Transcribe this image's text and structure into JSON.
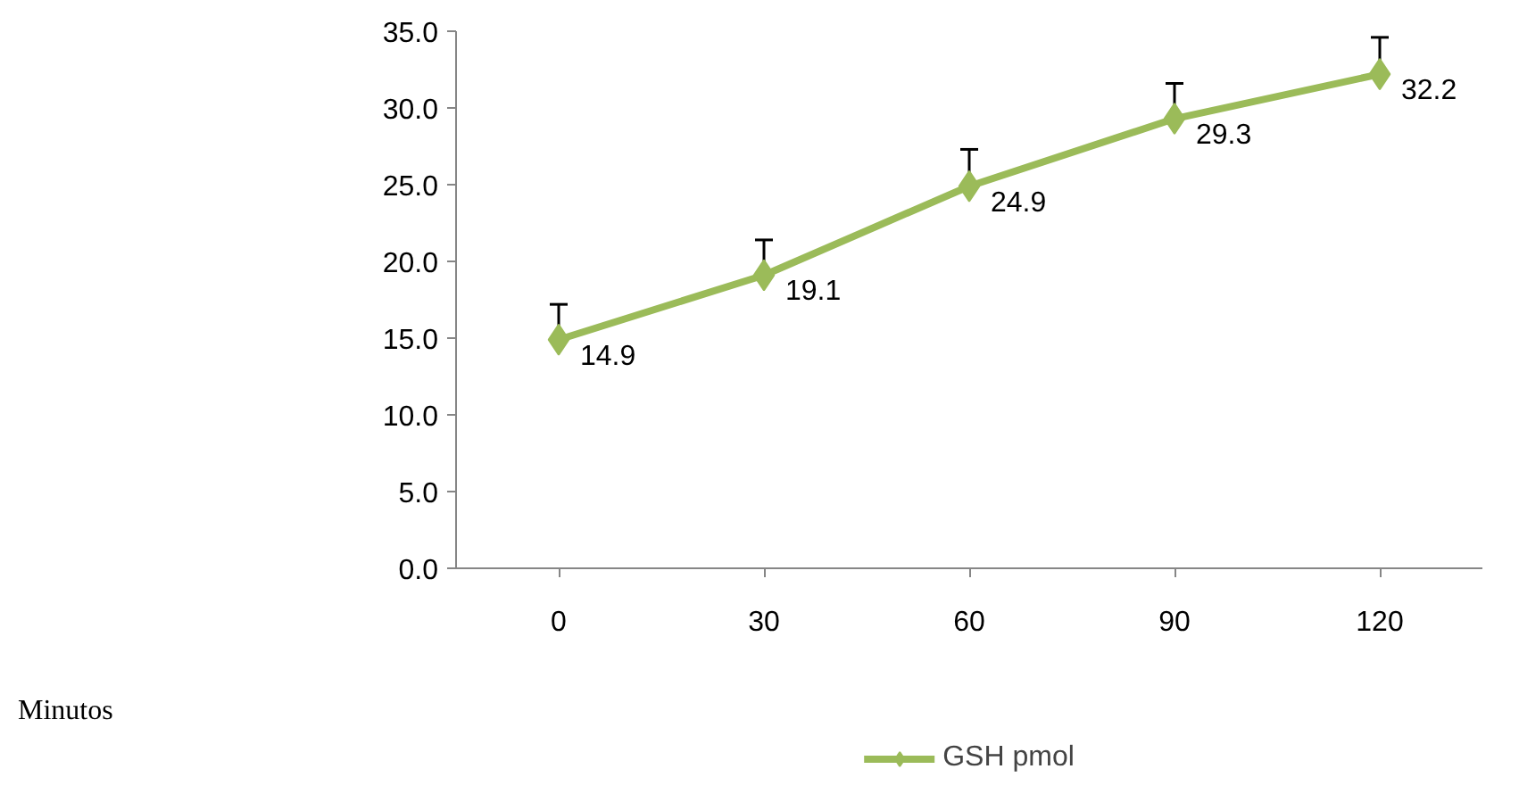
{
  "chart_data": {
    "type": "line",
    "annotations": [
      "Minutos"
    ],
    "categories": [
      "0",
      "30",
      "60",
      "90",
      "120"
    ],
    "series": [
      {
        "name": "GSH pmol",
        "color": "#9bbb59",
        "values": [
          14.9,
          19.1,
          24.9,
          29.3,
          32.2
        ],
        "errors": [
          [
            14.9,
            17.2
          ],
          [
            19.1,
            21.4
          ],
          [
            24.9,
            27.3
          ],
          [
            29.3,
            31.6
          ],
          [
            32.2,
            34.6
          ]
        ]
      }
    ],
    "ylim": [
      0,
      35
    ],
    "yticks": [
      {
        "value": 0,
        "label": "0.0"
      },
      {
        "value": 5,
        "label": "5.0"
      },
      {
        "value": 10,
        "label": "10.0"
      },
      {
        "value": 15,
        "label": "15.0"
      },
      {
        "value": 20,
        "label": "20.0"
      },
      {
        "value": 25,
        "label": "25.0"
      },
      {
        "value": 30,
        "label": "30.0"
      },
      {
        "value": 35,
        "label": "35.0"
      }
    ],
    "marker": "diamond",
    "line_style": "solid",
    "data_labels": true,
    "legend": "bottom",
    "grid": false
  }
}
